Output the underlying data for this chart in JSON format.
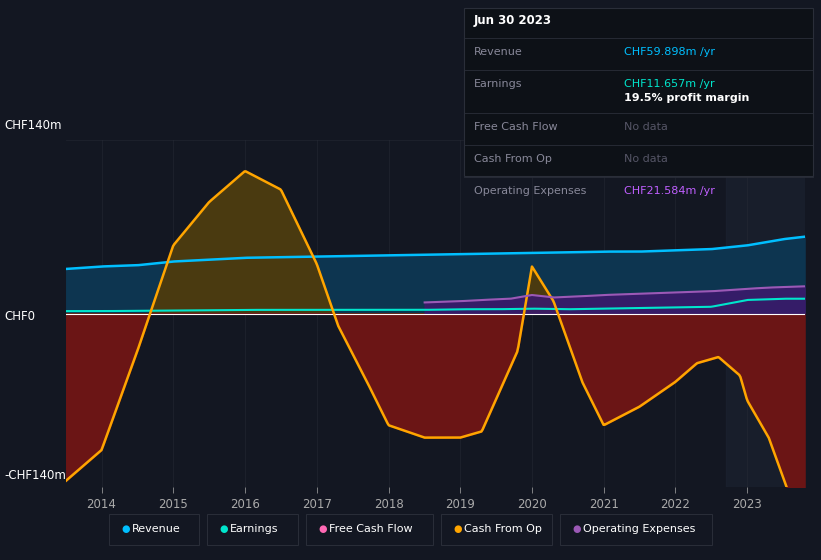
{
  "bg_color": "#131722",
  "plot_bg_color": "#1a1e2d",
  "title_box": {
    "date": "Jun 30 2023",
    "revenue_label": "Revenue",
    "revenue_value": "CHF59.898m /yr",
    "earnings_label": "Earnings",
    "earnings_value": "CHF11.657m /yr",
    "profit_margin": "19.5% profit margin",
    "fcf_label": "Free Cash Flow",
    "fcf_value": "No data",
    "cashfromop_label": "Cash From Op",
    "cashfromop_value": "No data",
    "opex_label": "Operating Expenses",
    "opex_value": "CHF21.584m /yr",
    "revenue_color": "#00bfff",
    "earnings_color": "#00e5cc",
    "opex_color": "#bf5fff"
  },
  "ylabel_top": "CHF140m",
  "ylabel_zero": "CHF0",
  "ylabel_bottom": "-CHF140m",
  "xlabel_years": [
    "2014",
    "2015",
    "2016",
    "2017",
    "2018",
    "2019",
    "2020",
    "2021",
    "2022",
    "2023"
  ],
  "revenue_color": "#00bfff",
  "earnings_color": "#00e5cc",
  "fcf_color": "#ff69b4",
  "cash_from_op_color": "#ffa500",
  "opex_color": "#9b59b6",
  "legend": [
    {
      "label": "Revenue",
      "color": "#00bfff"
    },
    {
      "label": "Earnings",
      "color": "#00e5cc"
    },
    {
      "label": "Free Cash Flow",
      "color": "#ff69b4"
    },
    {
      "label": "Cash From Op",
      "color": "#ffa500"
    },
    {
      "label": "Operating Expenses",
      "color": "#9b59b6"
    }
  ],
  "grid_color": "#2a2e39",
  "zero_line_color": "#ffffff",
  "highlight_span_color": "#1e2840"
}
